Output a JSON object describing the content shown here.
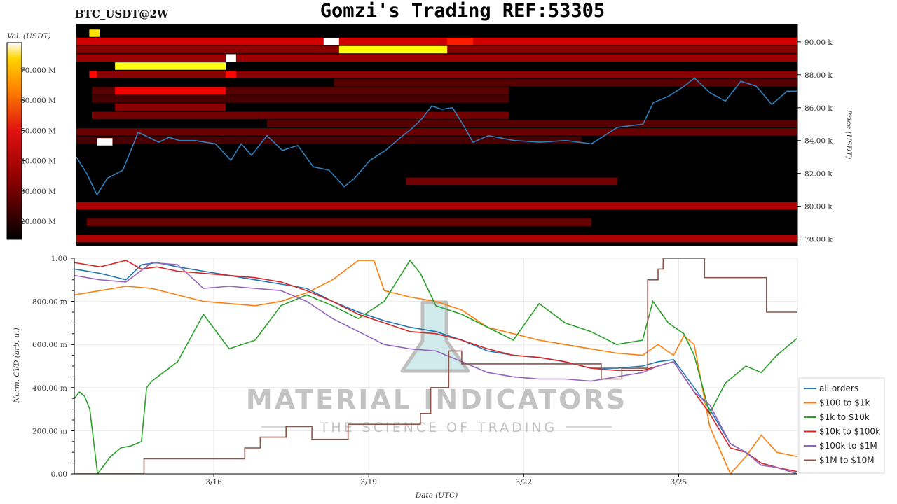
{
  "header": {
    "pair_label": "BTC_USDT@2W",
    "title": "Gomzi's Trading REF:53305"
  },
  "colorbar": {
    "label": "Vol. (USDT)",
    "ticks": [
      "70.000 M",
      "60.000 M",
      "50.000 M",
      "40.000 M",
      "30.000 M",
      "20.000 M"
    ],
    "tick_values": [
      70,
      60,
      50,
      40,
      30,
      20
    ],
    "range": [
      14,
      79
    ]
  },
  "watermark": {
    "name": "MATERIAL INDICATORS",
    "tagline": "THE SCIENCE OF TRADING"
  },
  "chart_data": [
    {
      "type": "heatmap",
      "name": "order-book-heatmap-with-price",
      "ylabel": "Price (USDT)",
      "y_ticks": [
        "90.00 k",
        "88.00 k",
        "86.00 k",
        "84.00 k",
        "82.00 k",
        "80.00 k",
        "78.00 k"
      ],
      "y_tick_values": [
        90000,
        88000,
        86000,
        84000,
        82000,
        80000,
        78000
      ],
      "ylim": [
        77600,
        91100
      ],
      "xlim": [
        0,
        14
      ],
      "colormap": "hot",
      "bands": [
        {
          "price": 90000,
          "x0": 0.0,
          "x1": 14.0,
          "vol": 38
        },
        {
          "price": 89500,
          "x0": 0.0,
          "x1": 14.0,
          "vol": 30
        },
        {
          "price": 89000,
          "x0": 0.0,
          "x1": 14.0,
          "vol": 32
        },
        {
          "price": 88000,
          "x0": 0.3,
          "x1": 14.0,
          "vol": 30
        },
        {
          "price": 87500,
          "x0": 5.0,
          "x1": 14.0,
          "vol": 24
        },
        {
          "price": 87000,
          "x0": 0.3,
          "x1": 8.4,
          "vol": 24
        },
        {
          "price": 86500,
          "x0": 0.3,
          "x1": 8.4,
          "vol": 22
        },
        {
          "price": 85500,
          "x0": 0.3,
          "x1": 8.4,
          "vol": 27
        },
        {
          "price": 85000,
          "x0": 3.7,
          "x1": 14.0,
          "vol": 24
        },
        {
          "price": 84500,
          "x0": 0.0,
          "x1": 14.0,
          "vol": 26
        },
        {
          "price": 84000,
          "x0": 0.0,
          "x1": 9.8,
          "vol": 22
        },
        {
          "price": 81500,
          "x0": 6.4,
          "x1": 10.5,
          "vol": 27
        },
        {
          "price": 80000,
          "x0": 0.0,
          "x1": 14.0,
          "vol": 34
        },
        {
          "price": 79000,
          "x0": 0.2,
          "x1": 10.0,
          "vol": 26
        },
        {
          "price": 78000,
          "x0": 0.0,
          "x1": 14.0,
          "vol": 34
        }
      ],
      "hot_blocks": [
        {
          "price": 90500,
          "x0": 0.25,
          "x1": 0.45,
          "vol": 66
        },
        {
          "price": 90000,
          "x0": 4.8,
          "x1": 5.1,
          "vol": 79
        },
        {
          "price": 90000,
          "x0": 7.2,
          "x1": 7.7,
          "vol": 46
        },
        {
          "price": 89500,
          "x0": 5.1,
          "x1": 7.2,
          "vol": 70
        },
        {
          "price": 89000,
          "x0": 2.9,
          "x1": 3.1,
          "vol": 79
        },
        {
          "price": 88500,
          "x0": 0.75,
          "x1": 2.9,
          "vol": 72
        },
        {
          "price": 88000,
          "x0": 0.25,
          "x1": 0.4,
          "vol": 44
        },
        {
          "price": 88000,
          "x0": 2.9,
          "x1": 3.1,
          "vol": 44
        },
        {
          "price": 87000,
          "x0": 0.75,
          "x1": 2.9,
          "vol": 42
        },
        {
          "price": 86000,
          "x0": 0.75,
          "x1": 2.9,
          "vol": 30
        },
        {
          "price": 83900,
          "x0": 0.4,
          "x1": 0.7,
          "vol": 79
        }
      ],
      "price_line": {
        "name": "price",
        "color": "#2f7fbd",
        "x": [
          0.0,
          0.2,
          0.4,
          0.6,
          0.9,
          1.2,
          1.4,
          1.6,
          1.8,
          2.0,
          2.3,
          2.7,
          3.0,
          3.2,
          3.4,
          3.7,
          4.0,
          4.3,
          4.6,
          4.9,
          5.2,
          5.4,
          5.7,
          6.0,
          6.3,
          6.5,
          6.7,
          6.9,
          7.1,
          7.3,
          7.5,
          7.7,
          8.0,
          8.5,
          9.0,
          9.5,
          10.0,
          10.5,
          11.0,
          11.2,
          11.5,
          11.8,
          12.0,
          12.3,
          12.6,
          12.9,
          13.2,
          13.5,
          13.8,
          14.0
        ],
        "y": [
          83000,
          82000,
          80700,
          81700,
          82200,
          84500,
          84200,
          83900,
          84200,
          84000,
          84000,
          83800,
          82800,
          83800,
          83100,
          84300,
          83400,
          83700,
          82400,
          82200,
          81200,
          81700,
          82800,
          83400,
          84200,
          84700,
          85300,
          86100,
          85900,
          86000,
          85000,
          83900,
          84300,
          84000,
          83900,
          84000,
          83800,
          84800,
          85000,
          86300,
          86700,
          87300,
          87800,
          86900,
          86400,
          87600,
          87300,
          86200,
          87000,
          87000
        ]
      }
    },
    {
      "type": "line",
      "name": "normalized-cvd",
      "xlabel": "Date (UTC)",
      "ylabel": "Norm. CVD (arb. u.)",
      "x_ticks": [
        "3/16",
        "3/19",
        "3/22",
        "3/25"
      ],
      "x_tick_values": [
        2.7,
        5.7,
        8.7,
        11.7
      ],
      "xlim": [
        0,
        14
      ],
      "y_ticks": [
        "1.00",
        "800.00 m",
        "600.00 m",
        "400.00 m",
        "200.00 m",
        "0.00"
      ],
      "y_tick_values": [
        1.0,
        0.8,
        0.6,
        0.4,
        0.2,
        0.0
      ],
      "ylim": [
        0,
        1
      ],
      "grid": true,
      "legend_placement": "right",
      "series": [
        {
          "name": "all orders",
          "color": "#1f77b4",
          "x": [
            0,
            0.5,
            1,
            1.3,
            1.6,
            2,
            2.5,
            3,
            3.5,
            4,
            4.5,
            5,
            5.5,
            6,
            6.5,
            7,
            7.5,
            8,
            8.5,
            9,
            9.5,
            10,
            10.5,
            11,
            11.3,
            11.6,
            12,
            12.3,
            12.7,
            13,
            13.3,
            13.6,
            14
          ],
          "y": [
            0.95,
            0.93,
            0.9,
            0.97,
            0.98,
            0.96,
            0.94,
            0.92,
            0.9,
            0.88,
            0.86,
            0.8,
            0.75,
            0.71,
            0.68,
            0.66,
            0.62,
            0.57,
            0.55,
            0.54,
            0.52,
            0.49,
            0.49,
            0.5,
            0.52,
            0.53,
            0.4,
            0.3,
            0.14,
            0.1,
            0.05,
            0.03,
            0.0
          ]
        },
        {
          "name": "$100 to $1k",
          "color": "#ff7f0e",
          "x": [
            0,
            0.5,
            1,
            1.5,
            2,
            2.5,
            3,
            3.5,
            4,
            4.5,
            5,
            5.5,
            5.8,
            6,
            6.5,
            7,
            7.5,
            8,
            8.5,
            9,
            9.5,
            10,
            10.5,
            11,
            11.3,
            11.6,
            11.8,
            12,
            12.3,
            12.7,
            13,
            13.3,
            13.6,
            14
          ],
          "y": [
            0.83,
            0.85,
            0.87,
            0.86,
            0.83,
            0.8,
            0.79,
            0.78,
            0.8,
            0.84,
            0.9,
            0.99,
            0.99,
            0.85,
            0.82,
            0.8,
            0.76,
            0.68,
            0.65,
            0.62,
            0.6,
            0.58,
            0.56,
            0.55,
            0.6,
            0.55,
            0.64,
            0.6,
            0.22,
            0.0,
            0.08,
            0.18,
            0.1,
            0.08
          ]
        },
        {
          "name": "$1k to $10k",
          "color": "#2ca02c",
          "x": [
            0,
            0.1,
            0.2,
            0.3,
            0.45,
            0.7,
            0.9,
            1.1,
            1.3,
            1.4,
            1.5,
            2,
            2.5,
            3,
            3.5,
            4,
            4.5,
            5,
            5.5,
            6,
            6.5,
            6.7,
            7,
            7.5,
            8,
            8.5,
            9,
            9.5,
            10,
            10.5,
            11,
            11.2,
            11.5,
            11.8,
            12,
            12.3,
            12.6,
            13,
            13.3,
            13.6,
            14
          ],
          "y": [
            0.35,
            0.38,
            0.36,
            0.3,
            0.0,
            0.08,
            0.12,
            0.13,
            0.15,
            0.4,
            0.43,
            0.52,
            0.74,
            0.58,
            0.62,
            0.78,
            0.83,
            0.78,
            0.72,
            0.8,
            0.99,
            0.93,
            0.78,
            0.74,
            0.68,
            0.62,
            0.79,
            0.7,
            0.66,
            0.6,
            0.62,
            0.8,
            0.7,
            0.65,
            0.55,
            0.28,
            0.42,
            0.5,
            0.47,
            0.55,
            0.63
          ]
        },
        {
          "name": "$10k to $100k",
          "color": "#d62728",
          "x": [
            0,
            0.5,
            1,
            1.3,
            1.6,
            2,
            2.5,
            3,
            3.5,
            4,
            4.5,
            5,
            5.5,
            6,
            6.5,
            7,
            7.5,
            8,
            8.5,
            9,
            9.5,
            10,
            10.5,
            11,
            11.3,
            11.6,
            12,
            12.3,
            12.7,
            13,
            13.3,
            13.6,
            14
          ],
          "y": [
            0.98,
            0.96,
            0.99,
            0.95,
            0.96,
            0.94,
            0.93,
            0.92,
            0.91,
            0.89,
            0.85,
            0.8,
            0.74,
            0.7,
            0.66,
            0.65,
            0.62,
            0.58,
            0.55,
            0.54,
            0.52,
            0.49,
            0.48,
            0.48,
            0.5,
            0.52,
            0.38,
            0.28,
            0.12,
            0.1,
            0.05,
            0.03,
            0.01
          ]
        },
        {
          "name": "$100k to $1M",
          "color": "#9467bd",
          "x": [
            0,
            0.5,
            1,
            1.5,
            2,
            2.5,
            3,
            3.5,
            4,
            4.5,
            5,
            5.5,
            6,
            6.5,
            7,
            7.5,
            8,
            8.5,
            9,
            9.5,
            10,
            10.5,
            11,
            11.3,
            11.6,
            12,
            12.3,
            12.7,
            13,
            13.3,
            13.6,
            14
          ],
          "y": [
            0.92,
            0.9,
            0.89,
            0.98,
            0.97,
            0.86,
            0.87,
            0.86,
            0.85,
            0.8,
            0.72,
            0.66,
            0.6,
            0.58,
            0.57,
            0.52,
            0.47,
            0.45,
            0.44,
            0.44,
            0.43,
            0.45,
            0.47,
            0.5,
            0.52,
            0.38,
            0.32,
            0.14,
            0.1,
            0.04,
            0.03,
            0.0
          ]
        },
        {
          "name": "$1M to $10M",
          "color": "#8c564b",
          "step": true,
          "x": [
            0,
            1.2,
            1.35,
            3.3,
            3.6,
            4.1,
            4.6,
            5.3,
            6.7,
            6.9,
            7.25,
            7.5,
            10.2,
            10.6,
            11.1,
            11.3,
            11.4,
            11.9,
            12.2,
            13.4,
            14
          ],
          "y": [
            0.0,
            0.0,
            0.07,
            0.12,
            0.17,
            0.22,
            0.16,
            0.23,
            0.28,
            0.4,
            0.57,
            0.51,
            0.44,
            0.49,
            0.9,
            0.95,
            1.0,
            1.0,
            0.91,
            0.75,
            0.75
          ]
        }
      ]
    }
  ]
}
